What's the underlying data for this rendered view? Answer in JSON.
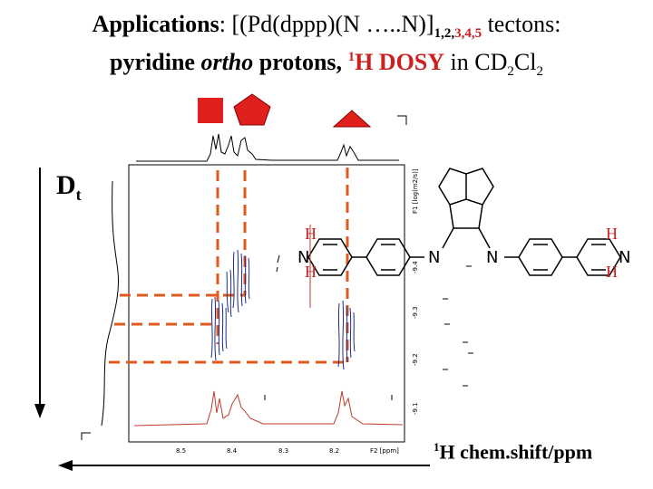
{
  "title": {
    "line1_applications": "Applications",
    "line1_colon": ": [(Pd(dppp)(N …..N)]",
    "line1_subscript_black": "1,2,",
    "line1_subscript_red": "3,4,5",
    "line1_tail": " tectons:",
    "line2_a": "pyridine ",
    "line2_ortho": "ortho",
    "line2_b": " protons, ",
    "line2_sup": "1",
    "line2_hdosy": "H DOSY",
    "line2_in": " in CD",
    "line2_sub2": "2",
    "line2_cl": "Cl",
    "line2_sub2b": "2"
  },
  "dt_label": {
    "main": "D",
    "sub": "t"
  },
  "x_axis_label": {
    "sup": "1",
    "text": "H chem.shift/ppm"
  },
  "spectrum": {
    "f1_label": "F1 [log(m2/s)]",
    "f1_ticks": [
      "-9.4",
      "-9.3",
      "-9.2",
      "-9.1"
    ],
    "f2_ticks": [
      "8.5",
      "8.4",
      "8.3",
      "8.2"
    ],
    "f2_unit": "F2 [ppm]"
  },
  "structure": {
    "h_labels": [
      "H",
      "H",
      "H",
      "H"
    ],
    "n_labels": [
      "N",
      "N",
      "N",
      "N"
    ]
  },
  "colors": {
    "red_marker": "#e0201c",
    "blue_contour": "#1a2b8f",
    "red_spectrum": "#c0392b",
    "dashed": "#e05a1c"
  },
  "markers": [
    "red-square",
    "red-pentagon",
    "red-triangle"
  ]
}
